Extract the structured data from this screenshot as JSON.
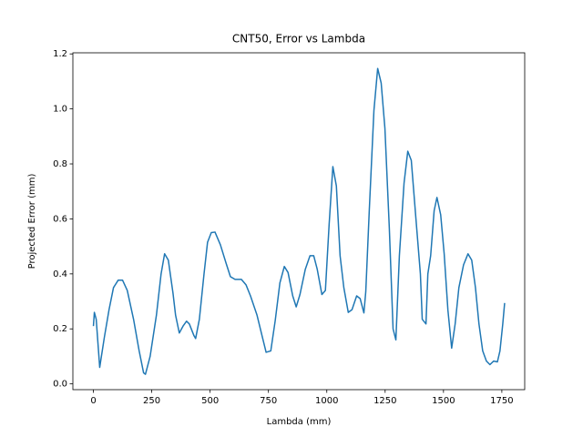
{
  "chart_data": {
    "type": "line",
    "title": "CNT50, Error vs Lambda",
    "x_label": "Lambda (mm)",
    "y_label": "Projected Error (mm)",
    "color": "#1f77b4",
    "x": [
      0,
      4,
      12,
      27,
      47,
      67,
      86,
      106,
      125,
      145,
      172,
      196,
      215,
      223,
      243,
      270,
      290,
      305,
      321,
      341,
      352,
      368,
      384,
      399,
      411,
      431,
      438,
      454,
      474,
      489,
      505,
      521,
      544,
      568,
      587,
      607,
      634,
      654,
      673,
      701,
      724,
      740,
      760,
      779,
      799,
      818,
      834,
      854,
      869,
      885,
      908,
      928,
      944,
      959,
      979,
      994,
      1010,
      1026,
      1041,
      1057,
      1073,
      1092,
      1108,
      1128,
      1143,
      1159,
      1167,
      1182,
      1202,
      1218,
      1233,
      1249,
      1268,
      1284,
      1296,
      1311,
      1331,
      1347,
      1362,
      1382,
      1401,
      1409,
      1425,
      1433,
      1445,
      1460,
      1472,
      1488,
      1503,
      1519,
      1535,
      1550,
      1566,
      1586,
      1605,
      1621,
      1637,
      1652,
      1668,
      1684,
      1699,
      1715,
      1731,
      1742,
      1754,
      1762
    ],
    "values": [
      0.21,
      0.26,
      0.235,
      0.06,
      0.17,
      0.27,
      0.35,
      0.377,
      0.377,
      0.34,
      0.235,
      0.12,
      0.04,
      0.035,
      0.1,
      0.25,
      0.4,
      0.473,
      0.45,
      0.33,
      0.25,
      0.185,
      0.21,
      0.228,
      0.218,
      0.175,
      0.165,
      0.235,
      0.4,
      0.515,
      0.55,
      0.552,
      0.506,
      0.44,
      0.39,
      0.38,
      0.38,
      0.36,
      0.32,
      0.25,
      0.17,
      0.115,
      0.12,
      0.23,
      0.367,
      0.427,
      0.405,
      0.32,
      0.28,
      0.325,
      0.417,
      0.466,
      0.466,
      0.417,
      0.325,
      0.34,
      0.58,
      0.79,
      0.72,
      0.466,
      0.35,
      0.26,
      0.27,
      0.32,
      0.31,
      0.258,
      0.335,
      0.63,
      0.995,
      1.147,
      1.094,
      0.93,
      0.565,
      0.2,
      0.16,
      0.466,
      0.73,
      0.846,
      0.813,
      0.6,
      0.4,
      0.235,
      0.218,
      0.4,
      0.466,
      0.63,
      0.678,
      0.615,
      0.473,
      0.268,
      0.13,
      0.218,
      0.35,
      0.433,
      0.473,
      0.45,
      0.35,
      0.218,
      0.12,
      0.083,
      0.07,
      0.083,
      0.08,
      0.12,
      0.218,
      0.294
    ],
    "xlim": [
      -88,
      1848
    ],
    "xticks": [
      0,
      250,
      500,
      750,
      1000,
      1250,
      1500,
      1750
    ],
    "ylim": [
      -0.021,
      1.204
    ],
    "yticks": [
      {
        "value": 0,
        "label": "0.0"
      },
      0.2,
      0.4,
      0.6,
      0.8,
      {
        "value": 1,
        "label": "1.0"
      },
      1.2
    ]
  }
}
